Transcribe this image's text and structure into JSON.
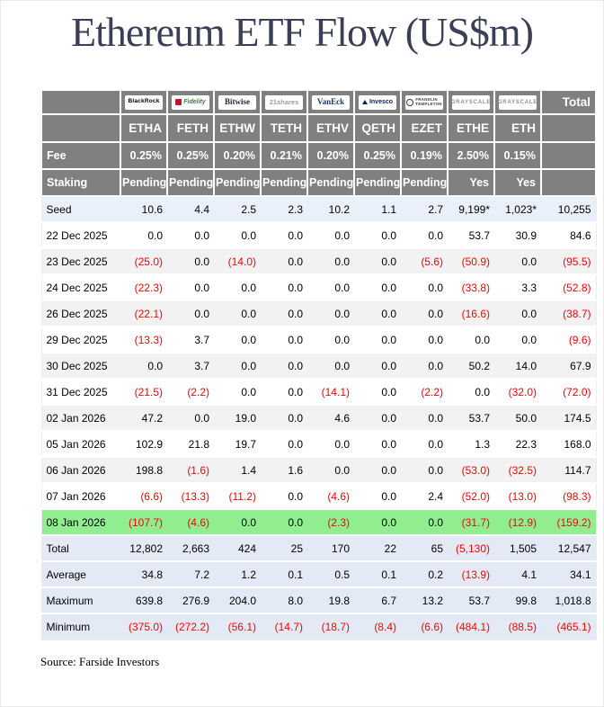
{
  "title": "Ethereum ETF Flow (US$m)",
  "source": "Source: Farside Investors",
  "colors": {
    "header_bg": "#808080",
    "negative_text": "#ff0000",
    "seed_row_bg": "#e9f0fa",
    "alt_row_bg": "#f2f2f2",
    "highlight_row_bg": "#90ee90",
    "summary_row_bg": "#e3eaf6",
    "title_color": "#3a3f55"
  },
  "chart_data": {
    "type": "table",
    "title": "Ethereum ETF Flow (US$m)",
    "providers": [
      {
        "label": "BlackRock",
        "style": "blackrock",
        "name": "blackrock-logo"
      },
      {
        "label": "Fidelity",
        "style": "fidelity",
        "name": "fidelity-logo"
      },
      {
        "label": "Bitwise",
        "style": "bitwise",
        "name": "bitwise-logo"
      },
      {
        "label": "21shares",
        "style": "shares21",
        "name": "21shares-logo"
      },
      {
        "label": "VanEck",
        "style": "vaneck",
        "name": "vaneck-logo"
      },
      {
        "label": "Invesco",
        "style": "invesco",
        "name": "invesco-logo"
      },
      {
        "label": "Franklin\nTempleton",
        "style": "franklin",
        "name": "franklin-templeton-logo"
      },
      {
        "label": "GRAYSCALE",
        "style": "grayscale",
        "name": "grayscale-ethe-logo"
      },
      {
        "label": "GRAYSCALE",
        "style": "grayscale",
        "name": "grayscale-eth-logo"
      }
    ],
    "total_label": "Total",
    "tickers": [
      "ETHA",
      "FETH",
      "ETHW",
      "TETH",
      "ETHV",
      "QETH",
      "EZET",
      "ETHE",
      "ETH"
    ],
    "fee_label": "Fee",
    "fees": [
      "0.25%",
      "0.25%",
      "0.20%",
      "0.21%",
      "0.20%",
      "0.25%",
      "0.19%",
      "2.50%",
      "0.15%"
    ],
    "staking_label": "Staking",
    "staking": [
      "Pending",
      "Pending",
      "Pending",
      "Pending",
      "Pending",
      "Pending",
      "Pending",
      "Yes",
      "Yes"
    ],
    "rows": [
      {
        "label": "Seed",
        "bg": "seed",
        "values": [
          "10.6",
          "4.4",
          "2.5",
          "2.3",
          "10.2",
          "1.1",
          "2.7",
          "9,199*",
          "1,023*",
          "10,255"
        ]
      },
      {
        "label": "22 Dec 2025",
        "bg": "white",
        "values": [
          "0.0",
          "0.0",
          "0.0",
          "0.0",
          "0.0",
          "0.0",
          "0.0",
          "53.7",
          "30.9",
          "84.6"
        ]
      },
      {
        "label": "23 Dec 2025",
        "bg": "alt",
        "values": [
          "(25.0)",
          "0.0",
          "(14.0)",
          "0.0",
          "0.0",
          "0.0",
          "(5.6)",
          "(50.9)",
          "0.0",
          "(95.5)"
        ]
      },
      {
        "label": "24 Dec 2025",
        "bg": "white",
        "values": [
          "(22.3)",
          "0.0",
          "0.0",
          "0.0",
          "0.0",
          "0.0",
          "0.0",
          "(33.8)",
          "3.3",
          "(52.8)"
        ]
      },
      {
        "label": "26 Dec 2025",
        "bg": "alt",
        "values": [
          "(22.1)",
          "0.0",
          "0.0",
          "0.0",
          "0.0",
          "0.0",
          "0.0",
          "(16.6)",
          "0.0",
          "(38.7)"
        ]
      },
      {
        "label": "29 Dec 2025",
        "bg": "white",
        "values": [
          "(13.3)",
          "3.7",
          "0.0",
          "0.0",
          "0.0",
          "0.0",
          "0.0",
          "0.0",
          "0.0",
          "(9.6)"
        ]
      },
      {
        "label": "30 Dec 2025",
        "bg": "alt",
        "values": [
          "0.0",
          "3.7",
          "0.0",
          "0.0",
          "0.0",
          "0.0",
          "0.0",
          "50.2",
          "14.0",
          "67.9"
        ]
      },
      {
        "label": "31 Dec 2025",
        "bg": "white",
        "values": [
          "(21.5)",
          "(2.2)",
          "0.0",
          "0.0",
          "(14.1)",
          "0.0",
          "(2.2)",
          "0.0",
          "(32.0)",
          "(72.0)"
        ]
      },
      {
        "label": "02 Jan 2026",
        "bg": "alt",
        "values": [
          "47.2",
          "0.0",
          "19.0",
          "0.0",
          "4.6",
          "0.0",
          "0.0",
          "53.7",
          "50.0",
          "174.5"
        ]
      },
      {
        "label": "05 Jan 2026",
        "bg": "white",
        "values": [
          "102.9",
          "21.8",
          "19.7",
          "0.0",
          "0.0",
          "0.0",
          "0.0",
          "1.3",
          "22.3",
          "168.0"
        ]
      },
      {
        "label": "06 Jan 2026",
        "bg": "alt",
        "values": [
          "198.8",
          "(1.6)",
          "1.4",
          "1.6",
          "0.0",
          "0.0",
          "0.0",
          "(53.0)",
          "(32.5)",
          "114.7"
        ]
      },
      {
        "label": "07 Jan 2026",
        "bg": "white",
        "values": [
          "(6.6)",
          "(13.3)",
          "(11.2)",
          "0.0",
          "(4.6)",
          "0.0",
          "2.4",
          "(52.0)",
          "(13.0)",
          "(98.3)"
        ]
      },
      {
        "label": "08 Jan 2026",
        "bg": "green",
        "values": [
          "(107.7)",
          "(4.6)",
          "0.0",
          "0.0",
          "(2.3)",
          "0.0",
          "0.0",
          "(31.7)",
          "(12.9)",
          "(159.2)"
        ]
      },
      {
        "label": "Total",
        "bg": "summary",
        "values": [
          "12,802",
          "2,663",
          "424",
          "25",
          "170",
          "22",
          "65",
          "(5,130)",
          "1,505",
          "12,547"
        ]
      },
      {
        "label": "Average",
        "bg": "summary",
        "values": [
          "34.8",
          "7.2",
          "1.2",
          "0.1",
          "0.5",
          "0.1",
          "0.2",
          "(13.9)",
          "4.1",
          "34.1"
        ]
      },
      {
        "label": "Maximum",
        "bg": "summary",
        "values": [
          "639.8",
          "276.9",
          "204.0",
          "8.0",
          "19.8",
          "6.7",
          "13.2",
          "53.7",
          "99.8",
          "1,018.8"
        ]
      },
      {
        "label": "Minimum",
        "bg": "summary",
        "values": [
          "(375.0)",
          "(272.2)",
          "(56.1)",
          "(14.7)",
          "(18.7)",
          "(8.4)",
          "(6.6)",
          "(484.1)",
          "(88.5)",
          "(465.1)"
        ]
      }
    ]
  }
}
